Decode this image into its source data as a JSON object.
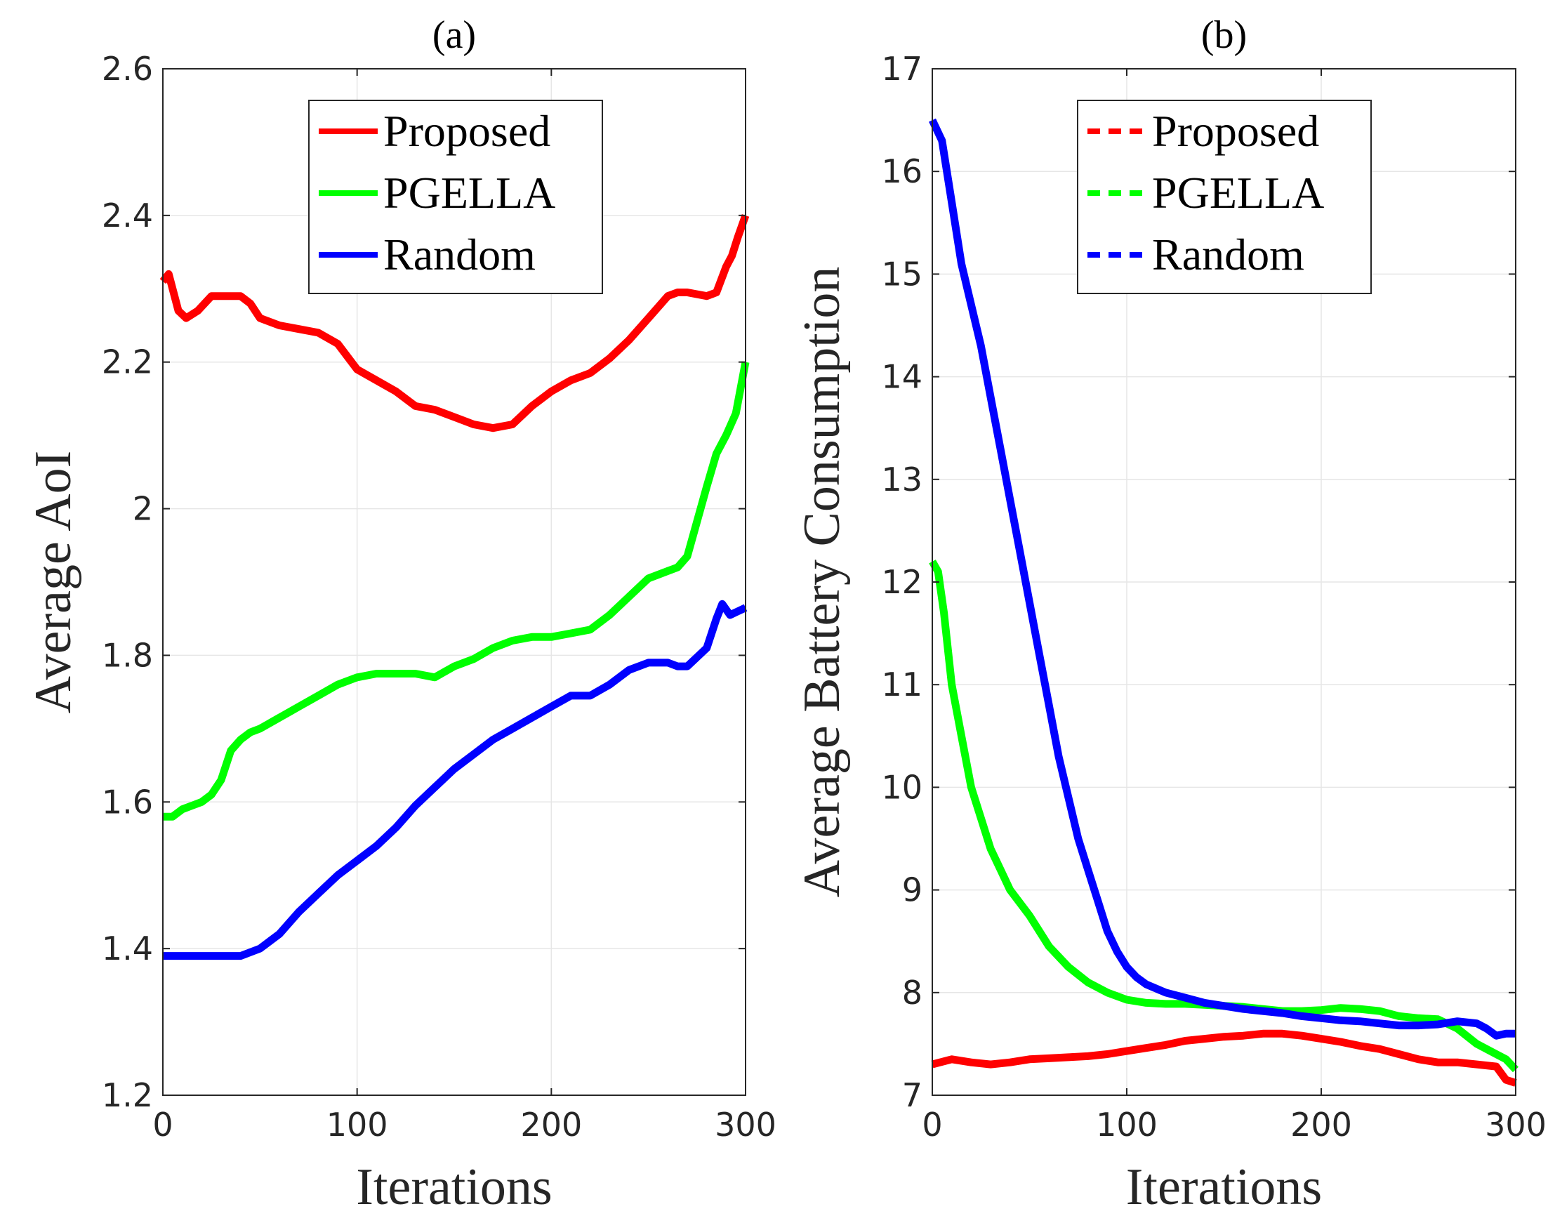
{
  "chart_data": [
    {
      "type": "line",
      "title": "(a)",
      "xlabel": "Iterations",
      "ylabel": "Average AoI",
      "xlim": [
        0,
        300
      ],
      "ylim": [
        1.2,
        2.6
      ],
      "xticks": [
        "0",
        "100",
        "200",
        "300"
      ],
      "yticks": [
        "1.2",
        "1.4",
        "1.6",
        "1.8",
        "2",
        "2.2",
        "2.4",
        "2.6"
      ],
      "grid": true,
      "legend_position": "top-center",
      "series": [
        {
          "name": "Proposed",
          "color": "#ff0000",
          "x": [
            0,
            3,
            8,
            12,
            18,
            25,
            30,
            35,
            40,
            45,
            50,
            60,
            70,
            80,
            90,
            100,
            110,
            120,
            130,
            140,
            150,
            160,
            170,
            180,
            190,
            200,
            210,
            220,
            230,
            240,
            250,
            260,
            265,
            270,
            280,
            285,
            290,
            293,
            296,
            300
          ],
          "y": [
            2.31,
            2.32,
            2.27,
            2.26,
            2.27,
            2.29,
            2.29,
            2.29,
            2.29,
            2.28,
            2.26,
            2.25,
            2.245,
            2.24,
            2.225,
            2.19,
            2.175,
            2.16,
            2.14,
            2.135,
            2.125,
            2.115,
            2.11,
            2.115,
            2.14,
            2.16,
            2.175,
            2.185,
            2.205,
            2.23,
            2.26,
            2.29,
            2.295,
            2.295,
            2.29,
            2.295,
            2.33,
            2.345,
            2.37,
            2.4
          ]
        },
        {
          "name": "PGELLA",
          "color": "#00ff00",
          "x": [
            0,
            5,
            10,
            15,
            20,
            25,
            30,
            35,
            40,
            45,
            50,
            60,
            70,
            80,
            90,
            100,
            110,
            120,
            130,
            140,
            150,
            160,
            170,
            180,
            190,
            200,
            210,
            220,
            230,
            240,
            250,
            260,
            265,
            270,
            280,
            285,
            290,
            295,
            300
          ],
          "y": [
            1.58,
            1.58,
            1.59,
            1.595,
            1.6,
            1.61,
            1.63,
            1.67,
            1.685,
            1.695,
            1.7,
            1.715,
            1.73,
            1.745,
            1.76,
            1.77,
            1.775,
            1.775,
            1.775,
            1.77,
            1.785,
            1.795,
            1.81,
            1.82,
            1.825,
            1.825,
            1.83,
            1.835,
            1.855,
            1.88,
            1.905,
            1.915,
            1.92,
            1.935,
            2.03,
            2.075,
            2.1,
            2.13,
            2.2
          ]
        },
        {
          "name": "Random",
          "color": "#0000ff",
          "x": [
            0,
            5,
            10,
            20,
            30,
            40,
            50,
            60,
            70,
            80,
            90,
            100,
            110,
            120,
            130,
            140,
            150,
            160,
            170,
            180,
            190,
            200,
            210,
            220,
            230,
            240,
            250,
            260,
            265,
            270,
            280,
            285,
            288,
            292,
            296,
            300
          ],
          "y": [
            1.39,
            1.39,
            1.39,
            1.39,
            1.39,
            1.39,
            1.4,
            1.42,
            1.45,
            1.475,
            1.5,
            1.52,
            1.54,
            1.565,
            1.595,
            1.62,
            1.645,
            1.665,
            1.685,
            1.7,
            1.715,
            1.73,
            1.745,
            1.745,
            1.76,
            1.78,
            1.79,
            1.79,
            1.785,
            1.785,
            1.81,
            1.85,
            1.87,
            1.855,
            1.86,
            1.865
          ]
        }
      ]
    },
    {
      "type": "line",
      "title": "(b)",
      "xlabel": "Iterations",
      "ylabel": "Average Battery Consumption",
      "xlim": [
        0,
        300
      ],
      "ylim": [
        7,
        17
      ],
      "xticks": [
        "0",
        "100",
        "200",
        "300"
      ],
      "yticks": [
        "7",
        "8",
        "9",
        "10",
        "11",
        "12",
        "13",
        "14",
        "15",
        "16",
        "17"
      ],
      "grid": true,
      "legend_position": "top-center",
      "series": [
        {
          "name": "Proposed",
          "color": "#ff0000",
          "x": [
            0,
            10,
            20,
            30,
            40,
            50,
            60,
            70,
            80,
            90,
            100,
            110,
            120,
            130,
            140,
            150,
            160,
            170,
            180,
            190,
            200,
            210,
            220,
            230,
            240,
            250,
            260,
            270,
            280,
            290,
            295,
            300
          ],
          "y": [
            7.3,
            7.35,
            7.32,
            7.3,
            7.32,
            7.35,
            7.36,
            7.37,
            7.38,
            7.4,
            7.43,
            7.46,
            7.49,
            7.53,
            7.55,
            7.57,
            7.58,
            7.6,
            7.6,
            7.58,
            7.55,
            7.52,
            7.48,
            7.45,
            7.4,
            7.35,
            7.32,
            7.32,
            7.3,
            7.28,
            7.15,
            7.12
          ]
        },
        {
          "name": "PGELLA",
          "color": "#00ff00",
          "x": [
            0,
            3,
            6,
            10,
            15,
            20,
            25,
            30,
            35,
            40,
            50,
            60,
            70,
            80,
            90,
            100,
            110,
            120,
            130,
            140,
            150,
            160,
            170,
            180,
            190,
            200,
            210,
            220,
            230,
            240,
            250,
            260,
            270,
            280,
            290,
            295,
            300
          ],
          "y": [
            12.2,
            12.1,
            11.7,
            11.0,
            10.5,
            10.0,
            9.7,
            9.4,
            9.2,
            9.0,
            8.75,
            8.45,
            8.25,
            8.1,
            8.0,
            7.93,
            7.9,
            7.89,
            7.89,
            7.88,
            7.87,
            7.86,
            7.84,
            7.82,
            7.82,
            7.83,
            7.85,
            7.84,
            7.82,
            7.77,
            7.75,
            7.74,
            7.65,
            7.5,
            7.4,
            7.35,
            7.25
          ]
        },
        {
          "name": "Random",
          "color": "#0000ff",
          "x": [
            0,
            5,
            10,
            15,
            20,
            25,
            30,
            35,
            40,
            45,
            50,
            55,
            60,
            65,
            70,
            75,
            80,
            85,
            90,
            95,
            100,
            105,
            110,
            120,
            130,
            140,
            150,
            160,
            170,
            180,
            190,
            200,
            210,
            220,
            230,
            240,
            250,
            260,
            270,
            280,
            285,
            290,
            295,
            300
          ],
          "y": [
            16.5,
            16.3,
            15.7,
            15.1,
            14.7,
            14.3,
            13.8,
            13.3,
            12.8,
            12.3,
            11.8,
            11.3,
            10.8,
            10.3,
            9.9,
            9.5,
            9.2,
            8.9,
            8.6,
            8.4,
            8.25,
            8.15,
            8.08,
            8.0,
            7.95,
            7.9,
            7.87,
            7.84,
            7.82,
            7.8,
            7.77,
            7.75,
            7.73,
            7.72,
            7.7,
            7.68,
            7.68,
            7.69,
            7.72,
            7.7,
            7.65,
            7.58,
            7.6,
            7.6
          ]
        }
      ]
    }
  ]
}
